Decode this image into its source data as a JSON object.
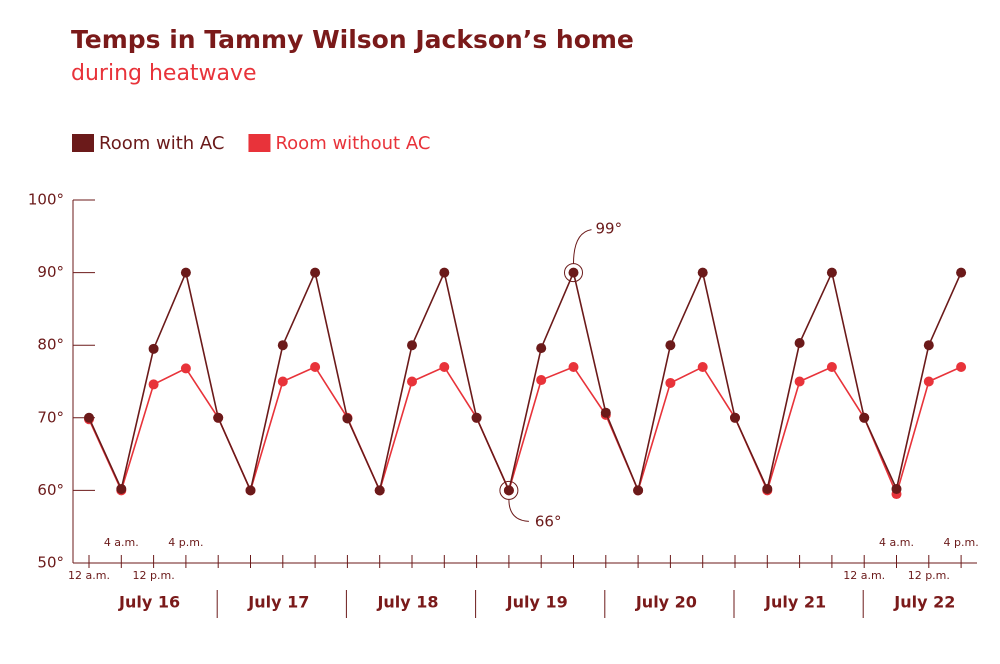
{
  "chart_data": {
    "type": "line",
    "title": "Temps in Tammy Wilson Jackson’s home",
    "subtitle": "during heatwave",
    "categories": [
      "12 a.m.",
      "4 a.m.",
      "12 p.m.",
      "4 p.m.",
      null,
      null,
      null,
      null,
      null,
      null,
      null,
      null,
      null,
      null,
      null,
      null,
      null,
      null,
      null,
      null,
      null,
      null,
      null,
      null,
      "12 a.m.",
      "4 a.m.",
      "12 p.m.",
      "4 p.m."
    ],
    "days": [
      "July 16",
      "July 17",
      "July 18",
      "July 19",
      "July 20",
      "July 21",
      "July 22"
    ],
    "series": [
      {
        "name": "Room with AC",
        "color": "#6b1a1a",
        "values": [
          70,
          60.2,
          79.5,
          90,
          70,
          60,
          80,
          90,
          69.9,
          60,
          80,
          90,
          70,
          60,
          79.6,
          90,
          70.7,
          60,
          80,
          90,
          70,
          60.2,
          80.3,
          90,
          70,
          60.2,
          80,
          90
        ]
      },
      {
        "name": "Room without AC",
        "color": "#e8333a",
        "values": [
          69.8,
          60,
          74.6,
          76.8,
          70,
          60,
          75,
          77,
          70,
          60,
          75,
          77,
          70,
          60,
          75.2,
          77,
          70.4,
          60,
          74.8,
          77,
          70,
          60,
          75,
          77,
          70,
          59.5,
          75,
          77
        ]
      }
    ],
    "annotations": [
      "99°",
      "66°"
    ],
    "ylim": [
      50,
      100
    ],
    "yticks": [
      {
        "value": 50,
        "label": "50°"
      },
      {
        "value": 60,
        "label": "60°"
      },
      {
        "value": 70,
        "label": "70°"
      },
      {
        "value": 80,
        "label": "80°"
      },
      {
        "value": 90,
        "label": "90°"
      },
      {
        "value": 100,
        "label": "100°"
      }
    ],
    "legend": "top-left"
  }
}
